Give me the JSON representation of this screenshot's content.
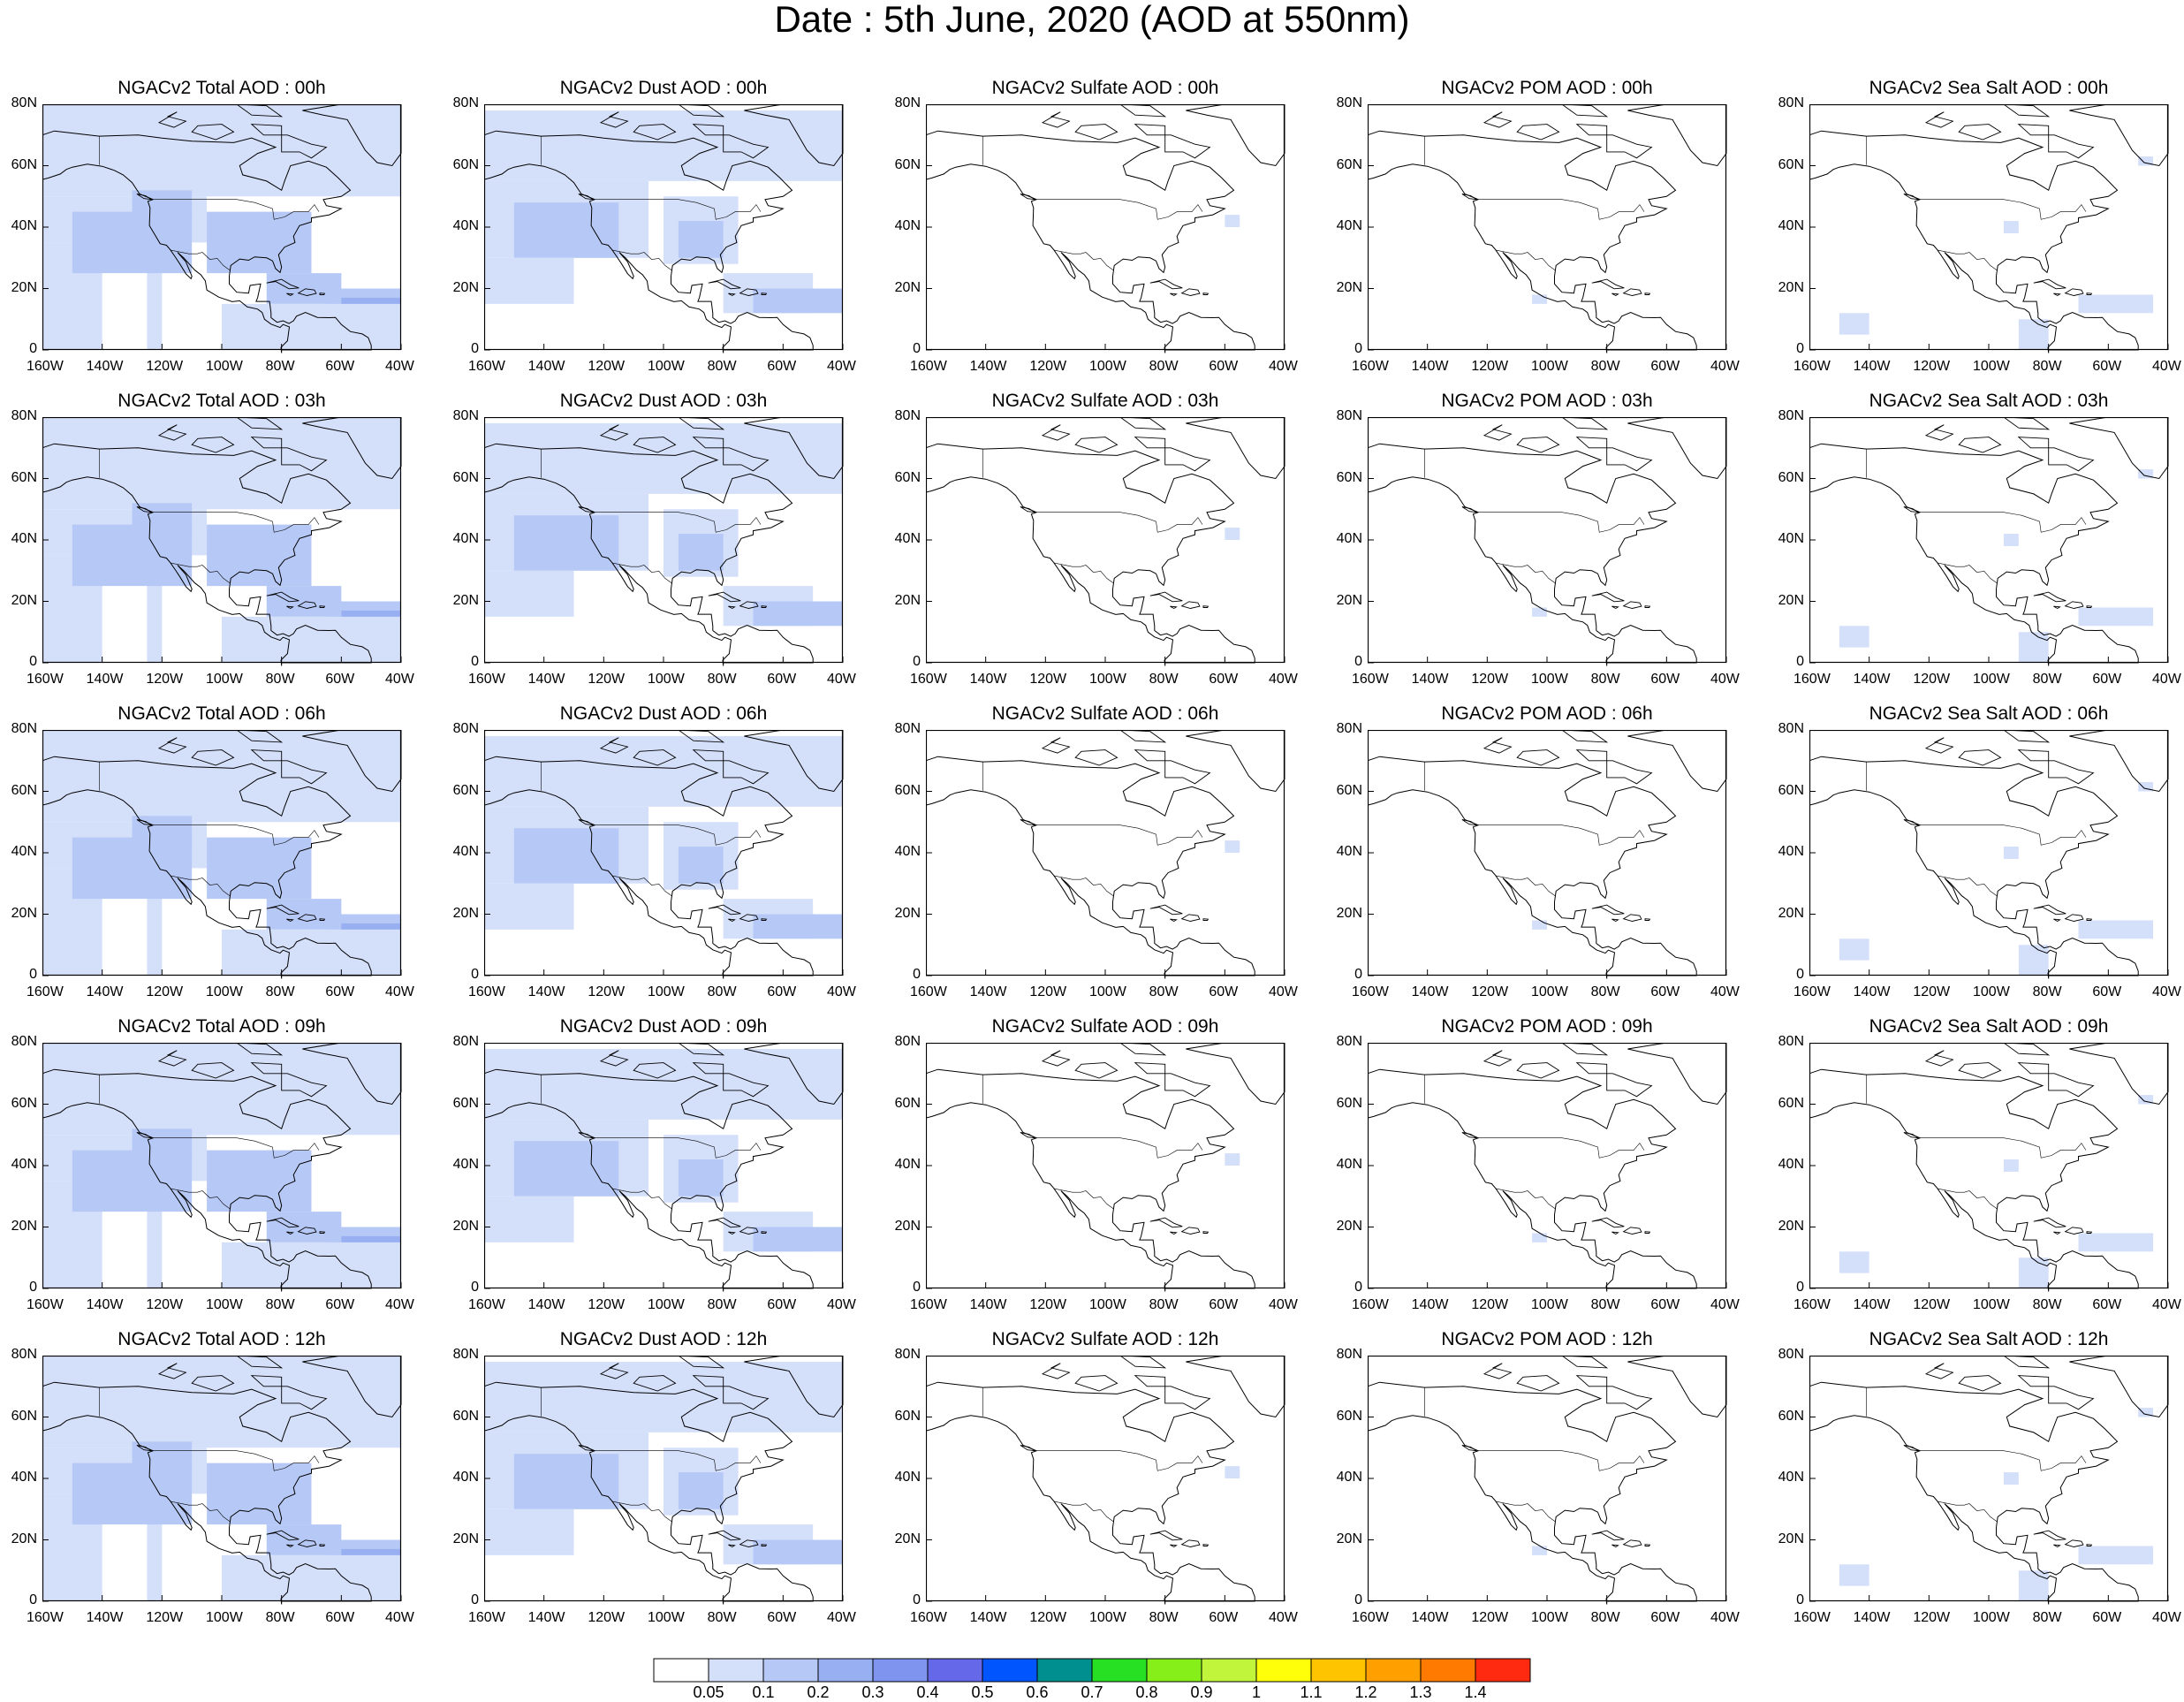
{
  "page_title": "Date : 5th June, 2020 (AOD at 550nm)",
  "chart_data": {
    "type": "heatmap",
    "description_axes": {
      "x_ticks": [
        "160W",
        "140W",
        "120W",
        "100W",
        "80W",
        "60W",
        "40W"
      ],
      "y_ticks": [
        "0",
        "20N",
        "40N",
        "60N",
        "80N"
      ],
      "xlim": [
        -160,
        -40
      ],
      "ylim": [
        0,
        80
      ]
    },
    "rows": [
      "00h",
      "03h",
      "06h",
      "09h",
      "12h"
    ],
    "columns": [
      "Total",
      "Dust",
      "Sulfate",
      "POM",
      "Sea Salt"
    ],
    "panels": [
      [
        "NGACv2 Total AOD : 00h",
        "NGACv2 Dust AOD : 00h",
        "NGACv2 Sulfate AOD : 00h",
        "NGACv2 POM AOD : 00h",
        "NGACv2 Sea Salt AOD : 00h"
      ],
      [
        "NGACv2 Total AOD : 03h",
        "NGACv2 Dust AOD : 03h",
        "NGACv2 Sulfate AOD : 03h",
        "NGACv2 POM AOD : 03h",
        "NGACv2 Sea Salt AOD : 03h"
      ],
      [
        "NGACv2 Total AOD : 06h",
        "NGACv2 Dust AOD : 06h",
        "NGACv2 Sulfate AOD : 06h",
        "NGACv2 POM AOD : 06h",
        "NGACv2 Sea Salt AOD : 06h"
      ],
      [
        "NGACv2 Total AOD : 09h",
        "NGACv2 Dust AOD : 09h",
        "NGACv2 Sulfate AOD : 09h",
        "NGACv2 POM AOD : 09h",
        "NGACv2 Sea Salt  AOD : 09h"
      ],
      [
        "NGACv2 Total AOD  : 12h",
        "NGACv2 Dust AOD : 12h",
        "NGACv2 Sulfate AOD : 12h",
        "NGACv2 POM  AOD : 12h",
        "NGACv2 Sea Salt  AOD : 12h"
      ]
    ],
    "field_level": {
      "Total": "0.05-0.2 over much of domain",
      "Dust": "0.05-0.2 over much of domain",
      "Sulfate": "mostly below 0.05",
      "POM": "mostly below 0.05",
      "Sea Salt": "0.05-0.1 in patches"
    },
    "colorbar": {
      "labels": [
        "0.05",
        "0.1",
        "0.2",
        "0.3",
        "0.4",
        "0.5",
        "0.6",
        "0.7",
        "0.8",
        "0.9",
        "1",
        "1.1",
        "1.2",
        "1.3",
        "1.4"
      ],
      "colors": [
        "#ffffff",
        "#d4dffa",
        "#b6c8f5",
        "#98b0f2",
        "#7f94ef",
        "#6668ea",
        "#0055ff",
        "#008f8f",
        "#27e023",
        "#86ef1a",
        "#c1f53c",
        "#ffff0a",
        "#ffc400",
        "#ffa000",
        "#ff7a00",
        "#ff2a10"
      ]
    }
  }
}
